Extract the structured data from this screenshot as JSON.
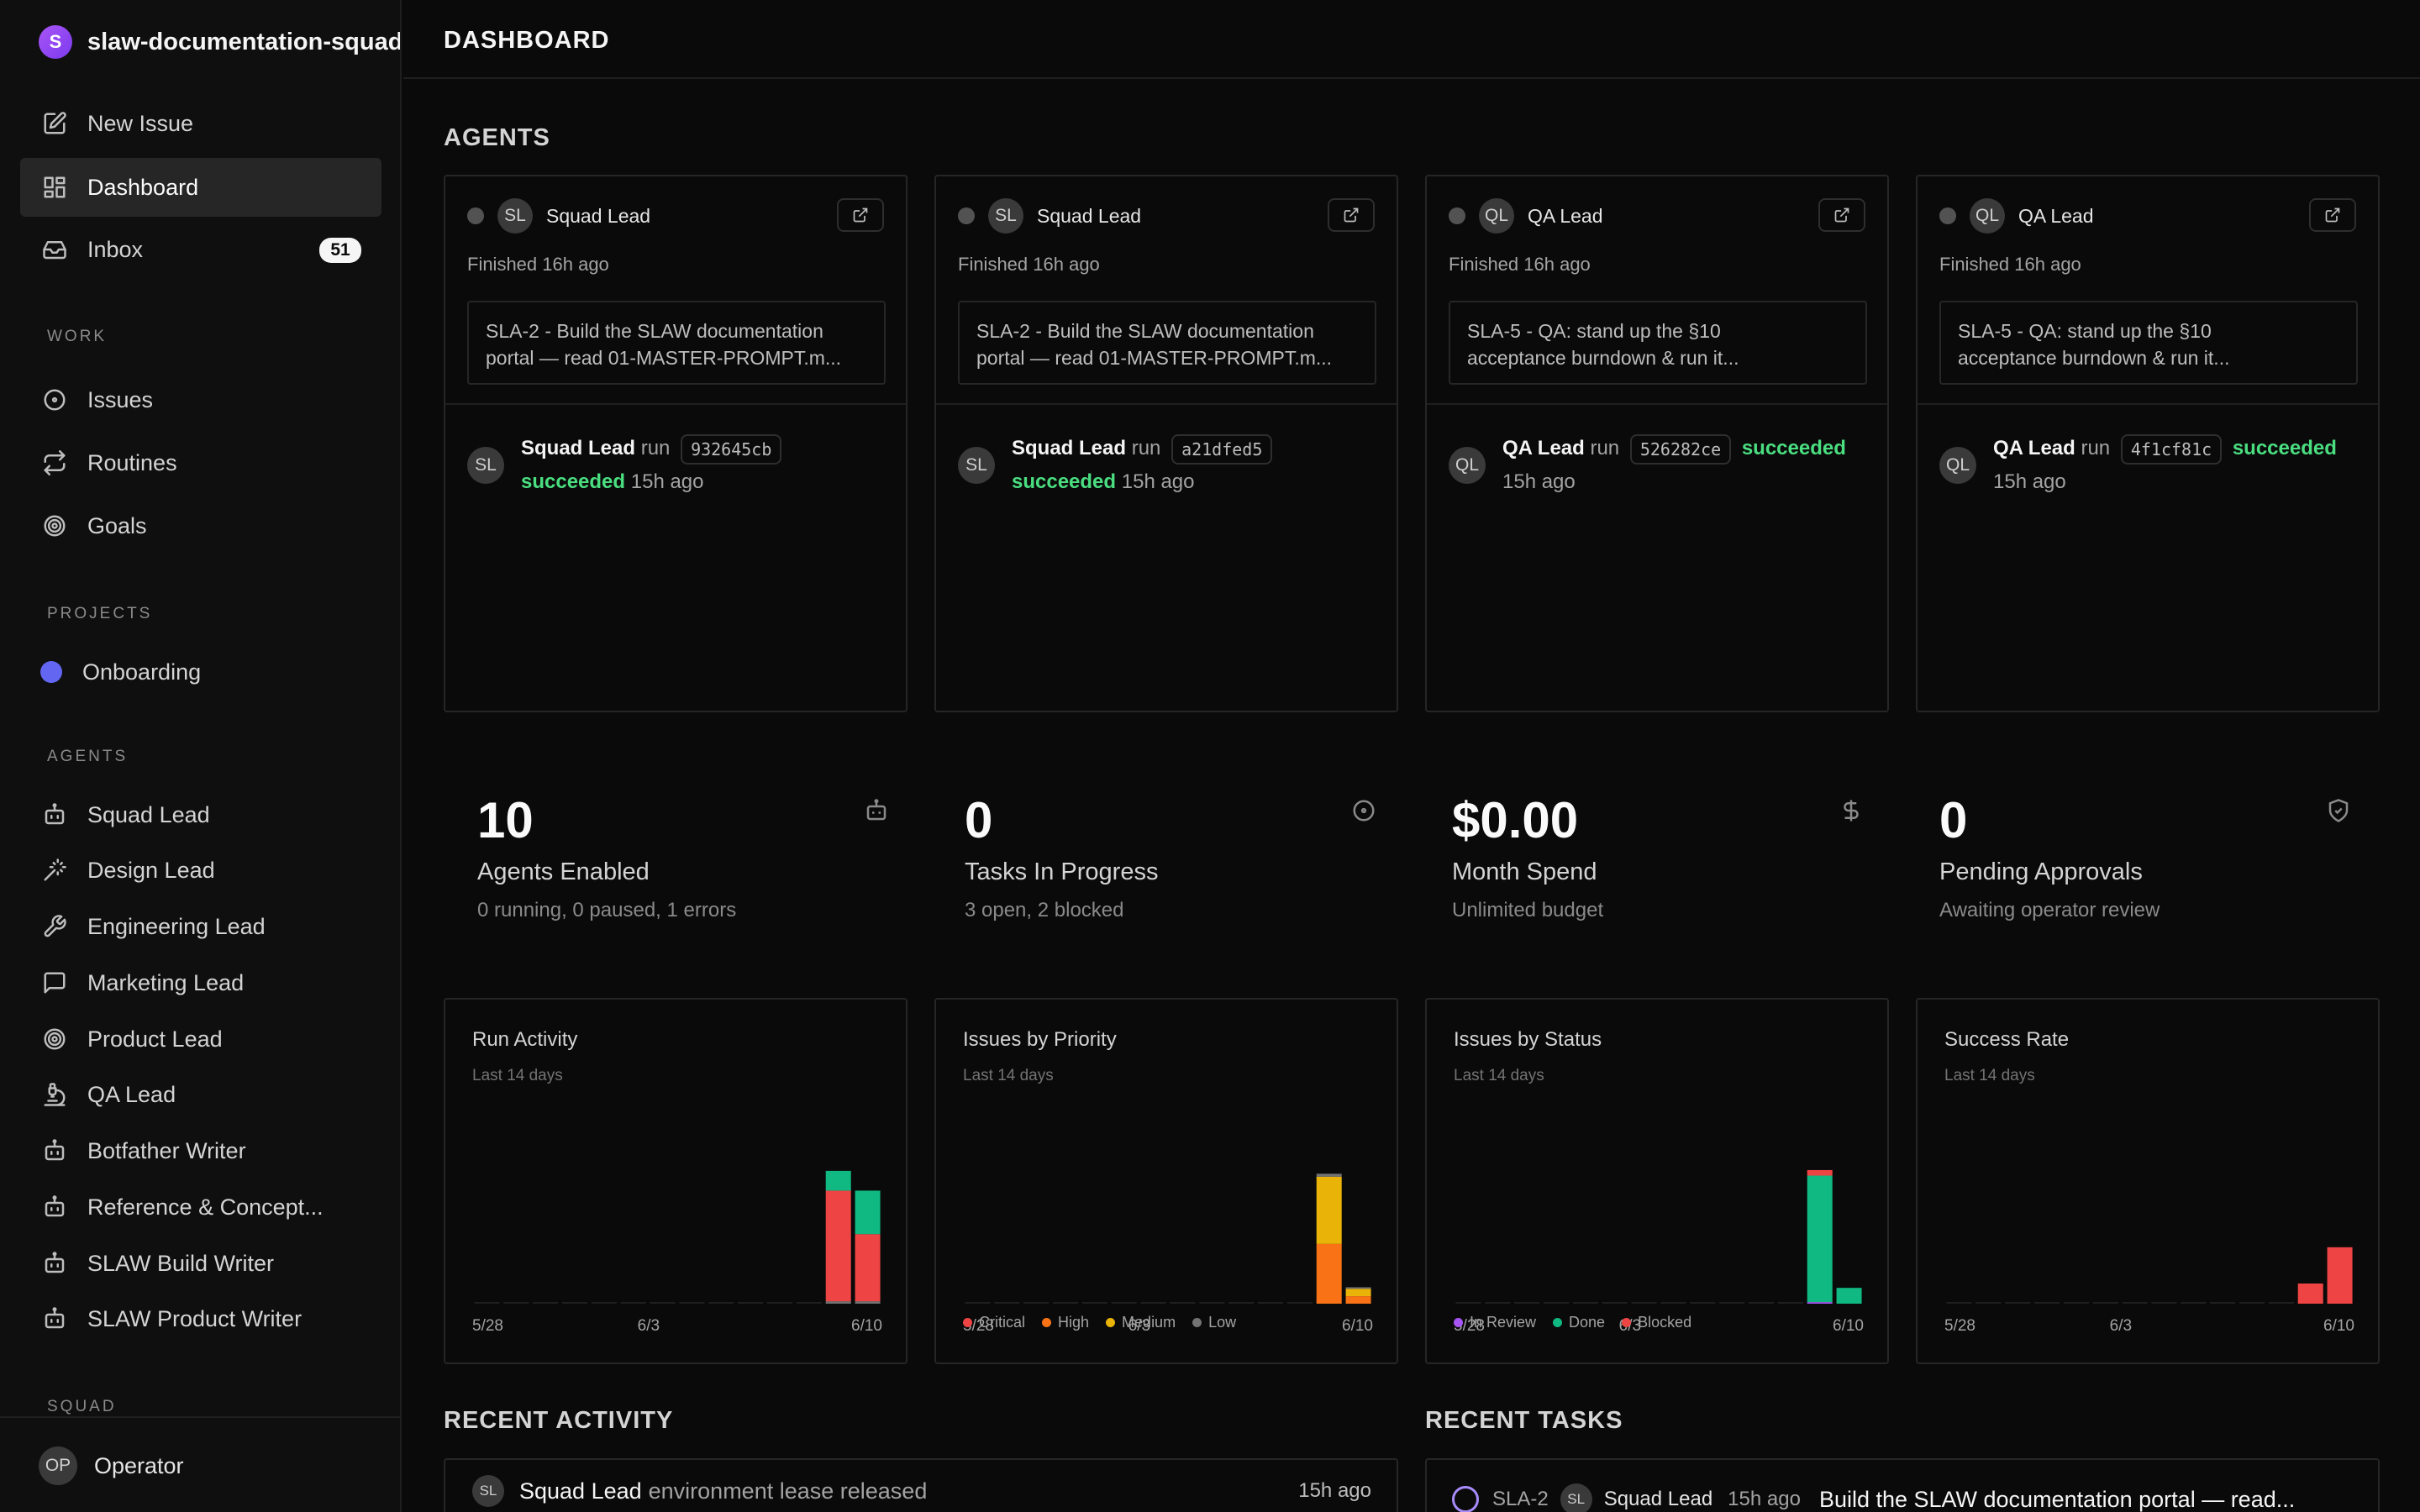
{
  "workspace": {
    "initial": "S",
    "name": "slaw-documentation-squad"
  },
  "nav": [
    {
      "label": "New Issue",
      "icon": "edit-icon"
    },
    {
      "label": "Dashboard",
      "icon": "grid-icon",
      "active": true
    },
    {
      "label": "Inbox",
      "icon": "inbox-icon",
      "badge": "51"
    }
  ],
  "sections": {
    "work": "WORK",
    "projects": "PROJECTS",
    "agents": "AGENTS",
    "squad": "SQUAD"
  },
  "work_items": [
    {
      "label": "Issues",
      "icon": "circle-dot-icon"
    },
    {
      "label": "Routines",
      "icon": "repeat-icon"
    },
    {
      "label": "Goals",
      "icon": "target-icon"
    }
  ],
  "projects": [
    {
      "label": "Onboarding",
      "color": "#6366f1"
    }
  ],
  "agents_nav": [
    {
      "label": "Squad Lead",
      "icon": "bot-icon"
    },
    {
      "label": "Design Lead",
      "icon": "wand-icon"
    },
    {
      "label": "Engineering Lead",
      "icon": "wrench-icon"
    },
    {
      "label": "Marketing Lead",
      "icon": "message-square-icon"
    },
    {
      "label": "Product Lead",
      "icon": "target-icon"
    },
    {
      "label": "QA Lead",
      "icon": "microscope-icon"
    },
    {
      "label": "Botfather Writer",
      "icon": "bot-icon"
    },
    {
      "label": "Reference & Concept...",
      "icon": "bot-icon"
    },
    {
      "label": "SLAW Build Writer",
      "icon": "bot-icon"
    },
    {
      "label": "SLAW Product Writer",
      "icon": "bot-icon"
    }
  ],
  "operator": {
    "initials": "OP",
    "name": "Operator"
  },
  "page_title": "DASHBOARD",
  "agents_heading": "AGENTS",
  "agent_cards": [
    {
      "initials": "SL",
      "name": "Squad Lead",
      "finished": "Finished 16h ago",
      "task_line1": "SLA-2 - Build the SLAW documentation",
      "task_line2": "portal — read 01-MASTER-PROMPT.m...",
      "run_agent": "Squad Lead",
      "run_word": "run",
      "hash": "932645cb",
      "status": "succeeded",
      "when": "15h ago"
    },
    {
      "initials": "SL",
      "name": "Squad Lead",
      "finished": "Finished 16h ago",
      "task_line1": "SLA-2 - Build the SLAW documentation",
      "task_line2": "portal — read 01-MASTER-PROMPT.m...",
      "run_agent": "Squad Lead",
      "run_word": "run",
      "hash": "a21dfed5",
      "status": "succeeded",
      "when": "15h ago"
    },
    {
      "initials": "QL",
      "name": "QA Lead",
      "finished": "Finished 16h ago",
      "task_line1": "SLA-5 - QA: stand up the §10",
      "task_line2": "acceptance burndown & run it...",
      "run_agent": "QA Lead",
      "run_word": "run",
      "hash": "526282ce",
      "status": "succeeded",
      "when": "15h ago"
    },
    {
      "initials": "QL",
      "name": "QA Lead",
      "finished": "Finished 16h ago",
      "task_line1": "SLA-5 - QA: stand up the §10",
      "task_line2": "acceptance burndown & run it...",
      "run_agent": "QA Lead",
      "run_word": "run",
      "hash": "4f1cf81c",
      "status": "succeeded",
      "when": "15h ago"
    }
  ],
  "metrics": [
    {
      "value": "10",
      "label": "Agents Enabled",
      "sub": "0 running, 0 paused, 1 errors",
      "icon": "bot-icon"
    },
    {
      "value": "0",
      "label": "Tasks In Progress",
      "sub": "3 open, 2 blocked",
      "icon": "circle-dot-icon"
    },
    {
      "value": "$0.00",
      "label": "Month Spend",
      "sub": "Unlimited budget",
      "icon": "dollar-icon"
    },
    {
      "value": "0",
      "label": "Pending Approvals",
      "sub": "Awaiting operator review",
      "icon": "shield-check-icon"
    }
  ],
  "chart_data": [
    {
      "type": "bar",
      "title": "Run Activity",
      "subtitle": "Last 14 days",
      "x_ticks": [
        "5/28",
        "6/3",
        "6/10"
      ],
      "days": 14,
      "series": [
        {
          "color": "#737373",
          "values": [
            0,
            0,
            0,
            0,
            0,
            0,
            0,
            0,
            0,
            0,
            0,
            0,
            0.3,
            0.3
          ]
        },
        {
          "color": "#ef4444",
          "values": [
            0,
            0,
            0,
            0,
            0,
            0,
            0,
            0,
            0,
            0,
            0,
            0,
            14,
            8.5
          ]
        },
        {
          "color": "#10b981",
          "values": [
            0,
            0,
            0,
            0,
            0,
            0,
            0,
            0,
            0,
            0,
            0,
            0,
            2.5,
            5.5
          ]
        }
      ],
      "ymax": 17,
      "legend": []
    },
    {
      "type": "bar",
      "title": "Issues by Priority",
      "subtitle": "Last 14 days",
      "x_ticks": [
        "5/28",
        "6/3",
        "6/10"
      ],
      "days": 14,
      "series": [
        {
          "name": "Critical",
          "color": "#ef4444",
          "values": [
            0,
            0,
            0,
            0,
            0,
            0,
            0,
            0,
            0,
            0,
            0,
            0,
            0,
            0
          ]
        },
        {
          "name": "High",
          "color": "#f97316",
          "values": [
            0,
            0,
            0,
            0,
            0,
            0,
            0,
            0,
            0,
            0,
            0,
            0,
            4,
            0.5
          ]
        },
        {
          "name": "Medium",
          "color": "#eab308",
          "values": [
            0,
            0,
            0,
            0,
            0,
            0,
            0,
            0,
            0,
            0,
            0,
            0,
            4.5,
            0.5
          ]
        },
        {
          "name": "Low",
          "color": "#737373",
          "values": [
            0,
            0,
            0,
            0,
            0,
            0,
            0,
            0,
            0,
            0,
            0,
            0,
            0.2,
            0.1
          ]
        }
      ],
      "ymax": 9,
      "legend": [
        "Critical",
        "High",
        "Medium",
        "Low"
      ]
    },
    {
      "type": "bar",
      "title": "Issues by Status",
      "subtitle": "Last 14 days",
      "x_ticks": [
        "5/28",
        "6/3",
        "6/10"
      ],
      "days": 14,
      "series": [
        {
          "name": "In Review",
          "color": "#a855f7",
          "values": [
            0,
            0,
            0,
            0,
            0,
            0,
            0,
            0,
            0,
            0,
            0,
            0,
            0.2,
            0
          ]
        },
        {
          "name": "Done",
          "color": "#10b981",
          "values": [
            0,
            0,
            0,
            0,
            0,
            0,
            0,
            0,
            0,
            0,
            0,
            0,
            16,
            2
          ]
        },
        {
          "name": "Blocked",
          "color": "#ef4444",
          "values": [
            0,
            0,
            0,
            0,
            0,
            0,
            0,
            0,
            0,
            0,
            0,
            0,
            0.7,
            0
          ]
        }
      ],
      "ymax": 17,
      "legend": [
        "In Review",
        "Done",
        "Blocked"
      ]
    },
    {
      "type": "bar",
      "title": "Success Rate",
      "subtitle": "Last 14 days",
      "x_ticks": [
        "5/28",
        "6/3",
        "6/10"
      ],
      "days": 14,
      "series": [
        {
          "color": "#ef4444",
          "values": [
            0,
            0,
            0,
            0,
            0,
            0,
            0,
            0,
            0,
            0,
            0,
            0,
            0.15,
            0.42
          ]
        }
      ],
      "ymax": 1,
      "legend": []
    }
  ],
  "recent_activity": {
    "heading": "RECENT ACTIVITY",
    "items": [
      {
        "initials": "SL",
        "actor": "Squad Lead",
        "text": "environment lease released",
        "when": "15h ago"
      }
    ]
  },
  "recent_tasks": {
    "heading": "RECENT TASKS",
    "items": [
      {
        "id": "SLA-2",
        "initials": "SL",
        "agent": "Squad Lead",
        "when": "15h ago",
        "title": "Build the SLAW documentation portal — read..."
      }
    ]
  }
}
